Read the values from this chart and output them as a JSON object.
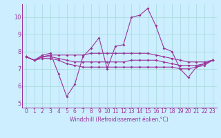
{
  "xlabel": "Windchill (Refroidissement éolien,°C)",
  "background_color": "#cceeff",
  "line_color": "#993399",
  "xlim": [
    -0.5,
    23.5
  ],
  "ylim": [
    4.75,
    10.75
  ],
  "yticks": [
    5,
    6,
    7,
    8,
    9,
    10
  ],
  "xticks": [
    0,
    1,
    2,
    3,
    4,
    5,
    6,
    7,
    8,
    9,
    10,
    11,
    12,
    13,
    14,
    15,
    16,
    17,
    18,
    19,
    20,
    21,
    22,
    23
  ],
  "grid_color": "#aadddd",
  "series": {
    "main": [
      7.7,
      7.5,
      7.8,
      7.9,
      6.7,
      5.4,
      6.1,
      7.7,
      8.2,
      8.8,
      7.0,
      8.3,
      8.4,
      10.0,
      10.1,
      10.5,
      9.5,
      8.2,
      8.0,
      7.0,
      6.5,
      7.1,
      7.3,
      7.5
    ],
    "line1": [
      7.7,
      7.5,
      7.7,
      7.8,
      7.8,
      7.8,
      7.8,
      7.8,
      7.9,
      7.9,
      7.9,
      7.9,
      7.9,
      7.9,
      7.9,
      7.9,
      7.8,
      7.7,
      7.6,
      7.5,
      7.4,
      7.4,
      7.4,
      7.5
    ],
    "line2": [
      7.7,
      7.5,
      7.6,
      7.6,
      7.5,
      7.3,
      7.2,
      7.1,
      7.1,
      7.1,
      7.1,
      7.1,
      7.1,
      7.1,
      7.1,
      7.1,
      7.1,
      7.1,
      7.1,
      7.0,
      7.0,
      7.1,
      7.2,
      7.5
    ],
    "line3": [
      7.7,
      7.5,
      7.7,
      7.7,
      7.6,
      7.5,
      7.4,
      7.4,
      7.4,
      7.4,
      7.4,
      7.4,
      7.4,
      7.5,
      7.5,
      7.5,
      7.5,
      7.4,
      7.3,
      7.2,
      7.2,
      7.2,
      7.3,
      7.5
    ]
  },
  "marker_size": 2.0,
  "line_width": 0.8,
  "tick_fontsize": 5.5,
  "xlabel_fontsize": 5.5
}
